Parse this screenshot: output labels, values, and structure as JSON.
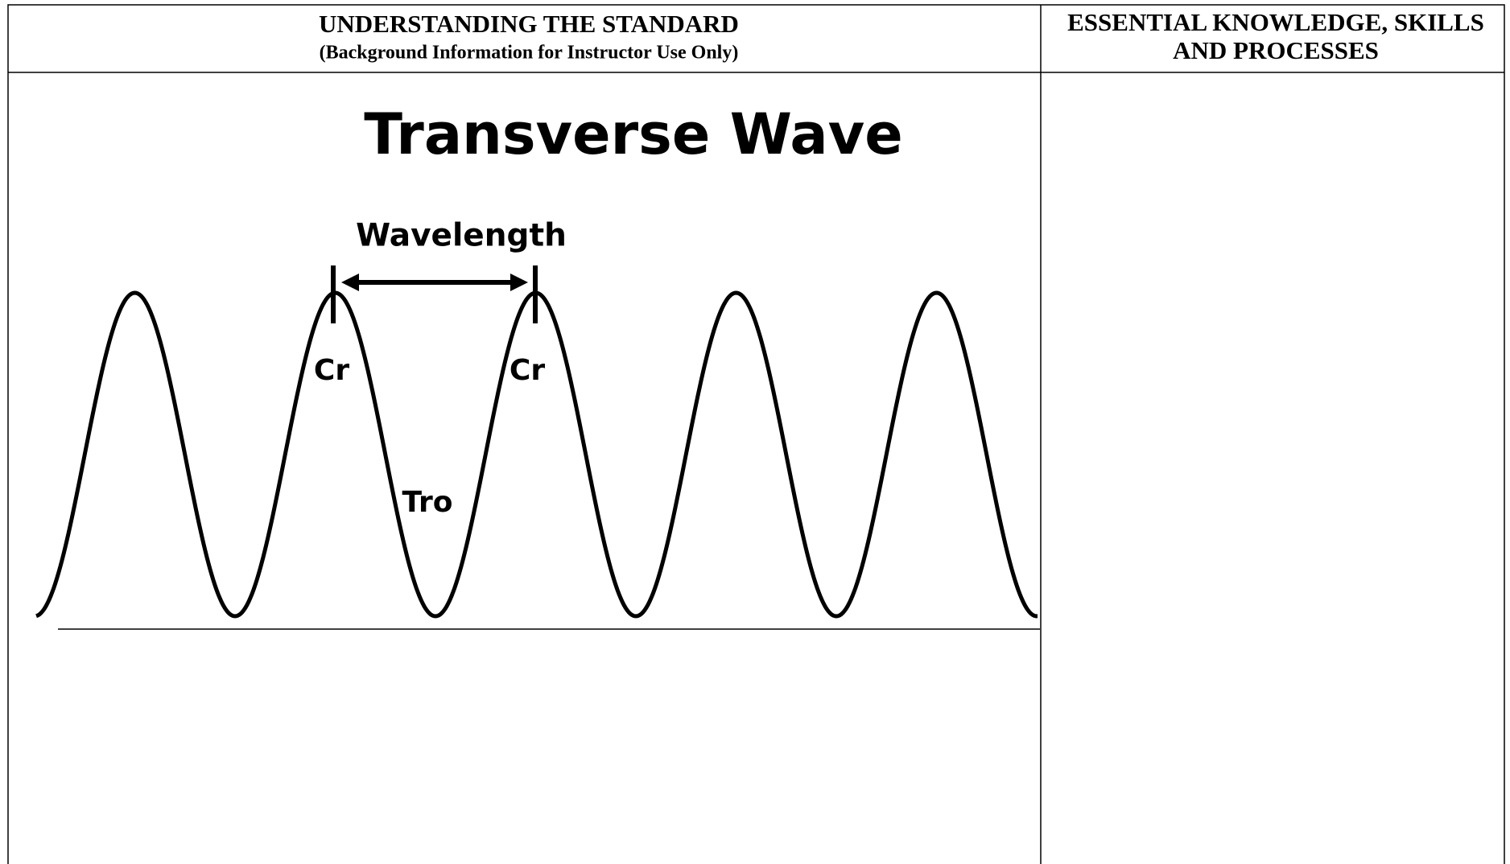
{
  "header": {
    "left_title": "UNDERSTANDING THE STANDARD",
    "left_subtitle": "(Background Information for Instructor Use Only)",
    "right_title_line1": "ESSENTIAL KNOWLEDGE, SKILLS",
    "right_title_line2": "AND PROCESSES"
  },
  "diagram": {
    "title": "Transverse Wave",
    "wavelength_label": "Wavelength",
    "crest_label_1": "Cr",
    "crest_label_2": "Cr",
    "trough_label": "Tro"
  }
}
